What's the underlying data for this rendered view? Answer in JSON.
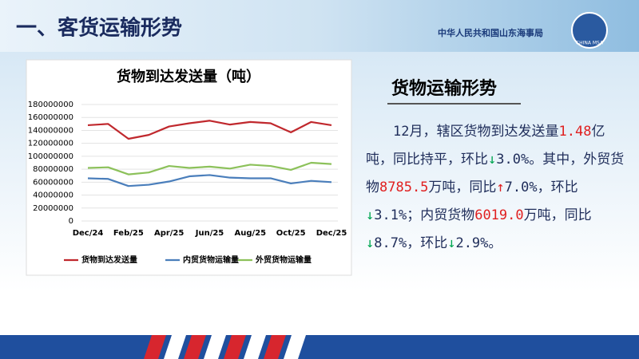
{
  "header": {
    "title": "一、客货运输形势",
    "org": "中华人民共和国山东海事局",
    "logo_text": "CHINA MSA"
  },
  "chart_data": {
    "type": "line",
    "title": "货物到达发送量（吨）",
    "categories": [
      "Dec/24",
      null,
      "Feb/25",
      null,
      "Apr/25",
      null,
      "Jun/25",
      null,
      "Aug/25",
      null,
      "Oct/25",
      null,
      "Dec/25"
    ],
    "series": [
      {
        "name": "货物到达发送量",
        "color": "#c0282d",
        "values": [
          148000000,
          150000000,
          127000000,
          133000000,
          146000000,
          151000000,
          155000000,
          149000000,
          153000000,
          151000000,
          137000000,
          153000000,
          148000000
        ]
      },
      {
        "name": "内贸货物运输量",
        "color": "#4a7ebb",
        "values": [
          66000000,
          65000000,
          54000000,
          56000000,
          61000000,
          69000000,
          71000000,
          67000000,
          66000000,
          66000000,
          58000000,
          62000000,
          60000000
        ]
      },
      {
        "name": "外贸货物运输量",
        "color": "#8cc15a",
        "values": [
          82000000,
          83000000,
          72000000,
          75000000,
          85000000,
          82000000,
          84000000,
          81000000,
          87000000,
          85000000,
          79000000,
          90000000,
          88000000
        ]
      }
    ],
    "ylim": [
      0,
      180000000
    ],
    "yticks": [
      0,
      20000000,
      40000000,
      60000000,
      80000000,
      100000000,
      120000000,
      140000000,
      160000000,
      180000000
    ],
    "legend": "bottom"
  },
  "text_block": {
    "heading": "货物运输形势",
    "segments": [
      {
        "text": "12月，辖区货物到达发送量",
        "color": "#1f2d5a"
      },
      {
        "text": "1.48",
        "color": "#e02020"
      },
      {
        "text": "亿吨，同比持平，环比",
        "color": "#1f2d5a"
      },
      {
        "text": "↓",
        "color": "#00a651"
      },
      {
        "text": "3.0%",
        "color": "#1f2d5a"
      },
      {
        "text": "。其中，外贸货物",
        "color": "#1f2d5a"
      },
      {
        "text": "8785.5",
        "color": "#e02020"
      },
      {
        "text": "万吨，同比",
        "color": "#1f2d5a"
      },
      {
        "text": "↑",
        "color": "#e02020"
      },
      {
        "text": "7.0%",
        "color": "#1f2d5a"
      },
      {
        "text": "，环比",
        "color": "#1f2d5a"
      },
      {
        "text": "↓",
        "color": "#00a651"
      },
      {
        "text": "3.1%",
        "color": "#1f2d5a"
      },
      {
        "text": "；内贸货物",
        "color": "#1f2d5a"
      },
      {
        "text": "6019.0",
        "color": "#e02020"
      },
      {
        "text": "万吨，同比",
        "color": "#1f2d5a"
      },
      {
        "text": "↓",
        "color": "#00a651"
      },
      {
        "text": "8.7%",
        "color": "#1f2d5a"
      },
      {
        "text": "，环比",
        "color": "#1f2d5a"
      },
      {
        "text": "↓",
        "color": "#00a651"
      },
      {
        "text": "2.9%",
        "color": "#1f2d5a"
      },
      {
        "text": "。",
        "color": "#1f2d5a"
      }
    ]
  }
}
